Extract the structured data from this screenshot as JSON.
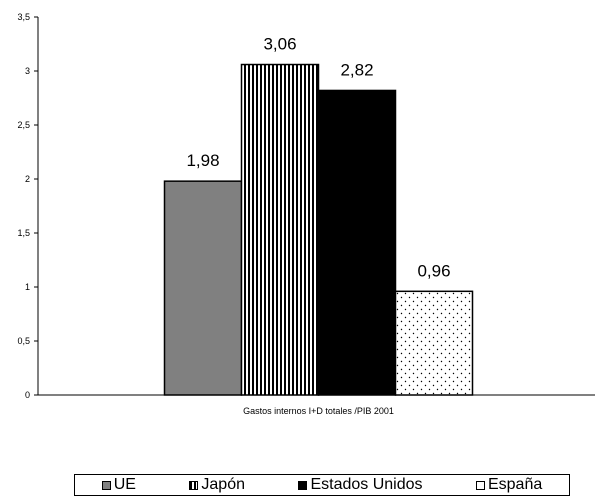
{
  "chart_data": {
    "type": "bar",
    "categories": [
      "Gastos internos I+D totales /PIB  2001"
    ],
    "series": [
      {
        "name": "UE",
        "values": [
          1.98
        ],
        "label": "1,98",
        "color": "#808080",
        "pattern": "solid"
      },
      {
        "name": "Japón",
        "values": [
          3.06
        ],
        "label": "3,06",
        "color": "#000000",
        "pattern": "vertical-stripes"
      },
      {
        "name": "Estados Unidos",
        "values": [
          2.82
        ],
        "label": "2,82",
        "color": "#000000",
        "pattern": "solid"
      },
      {
        "name": "España",
        "values": [
          0.96
        ],
        "label": "0,96",
        "color": "#ffffff",
        "pattern": "dots"
      }
    ],
    "ylim": [
      0,
      3.5
    ],
    "yticks": [
      0,
      0.5,
      1,
      1.5,
      2,
      2.5,
      3,
      3.5
    ],
    "ytick_labels": [
      "0",
      "0,5",
      "1",
      "1,5",
      "2",
      "2,5",
      "3",
      "3,5"
    ],
    "xlabel": "",
    "ylabel": "",
    "title": "",
    "grid": false,
    "legend_position": "bottom"
  }
}
